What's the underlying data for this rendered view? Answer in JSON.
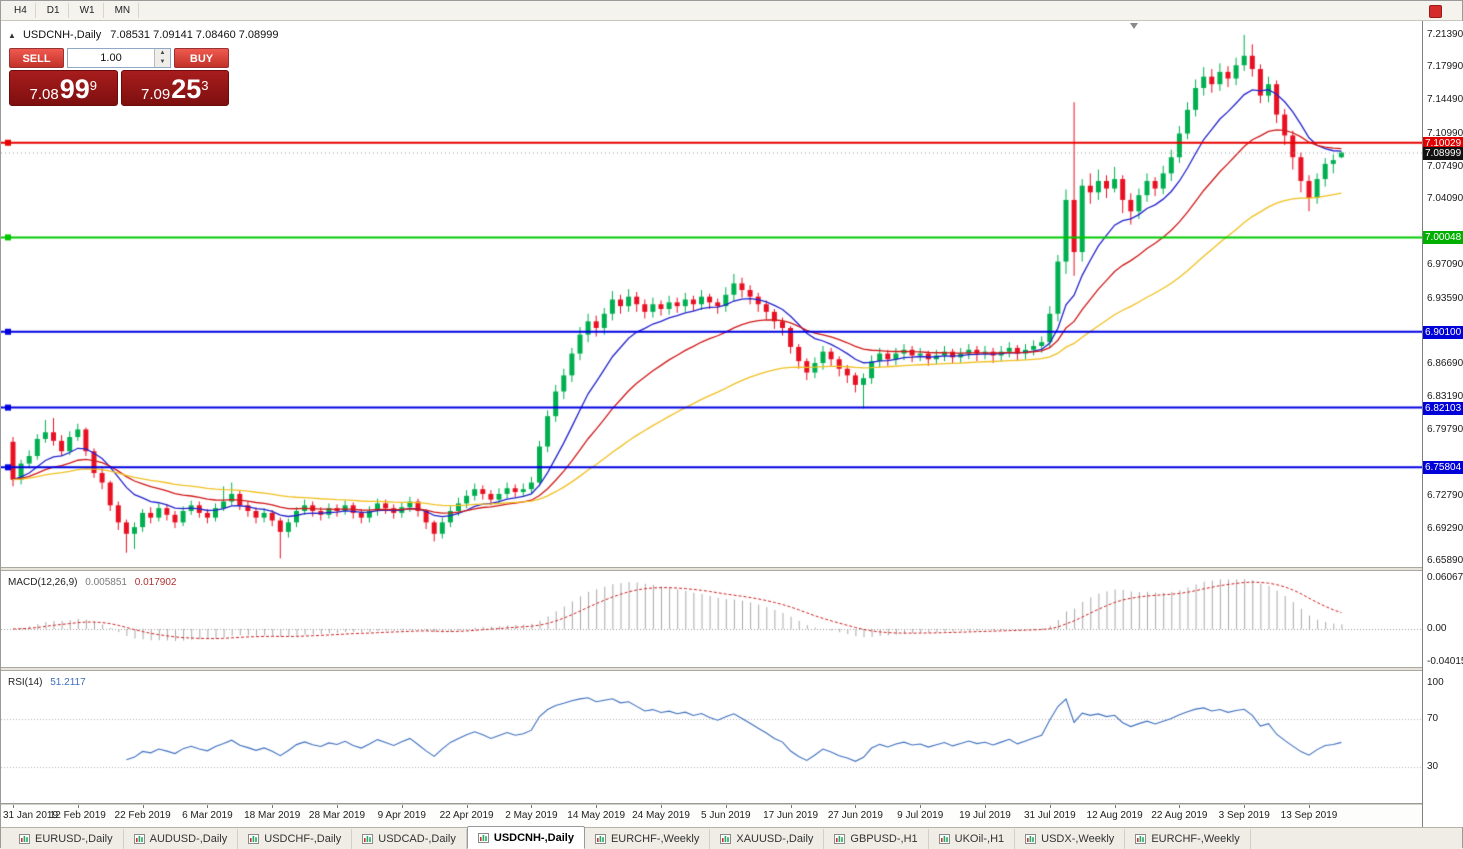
{
  "toolbar": {
    "timeframes": [
      "H4",
      "D1",
      "W1",
      "MN"
    ]
  },
  "icons": {
    "collapse_panel": "▲",
    "spinner_up": "▲",
    "spinner_down": "▼"
  },
  "chart_header": {
    "title": "USDCNH-,Daily",
    "ohlc": "7.08531 7.09141 7.08460 7.08999"
  },
  "trade_panel": {
    "sell": "SELL",
    "buy": "BUY",
    "volume": "1.00",
    "bid": {
      "big": "7.08",
      "pips": "99",
      "sup": "9"
    },
    "ask": {
      "big": "7.09",
      "pips": "25",
      "sup": "3"
    }
  },
  "price_axis": {
    "ticks": [
      "7.21390",
      "7.17990",
      "7.14490",
      "7.10990",
      "7.07490",
      "7.04090",
      "6.97090",
      "6.93590",
      "6.86690",
      "6.83190",
      "6.79790",
      "6.72790",
      "6.69290",
      "6.65890"
    ],
    "badges": [
      {
        "text": "7.10029",
        "color": "#E00000"
      },
      {
        "text": "7.08999",
        "color": "#111111"
      },
      {
        "text": "7.00048",
        "color": "#00AF00"
      },
      {
        "text": "6.90100",
        "color": "#0000D8"
      },
      {
        "text": "6.82103",
        "color": "#0000D8"
      },
      {
        "text": "6.75804",
        "color": "#0000D8"
      }
    ]
  },
  "indicator_macd": {
    "label": "MACD(12,26,9)",
    "main_value": "0.005851",
    "signal_value": "0.017902",
    "axis": [
      "0.060674",
      "0.00",
      "-0.040152"
    ]
  },
  "indicator_rsi": {
    "label": "RSI(14)",
    "value": "51.2117",
    "axis": [
      "100",
      "70",
      "30"
    ]
  },
  "tabs": {
    "active_index": 4,
    "items": [
      "EURUSD-,Daily",
      "AUDUSD-,Daily",
      "USDCHF-,Daily",
      "USDCAD-,Daily",
      "USDCNH-,Daily",
      "EURCHF-,Weekly",
      "XAUUSD-,Daily",
      "GBPUSD-,H1",
      "UKOil-,H1",
      "USDX-,Weekly",
      "EURCHF-,Weekly"
    ],
    "note": "USDCNH-,Daily is the active chart tab"
  },
  "chart_data": {
    "type": "candlestick",
    "symbol": "USDCNH-",
    "timeframe": "Daily",
    "current_bar": {
      "open": 7.08531,
      "high": 7.09141,
      "low": 7.0846,
      "close": 7.08999
    },
    "current_price": 7.08999,
    "y_range": [
      6.6589,
      7.2139
    ],
    "up_color": "#00B050",
    "down_color": "#E81123",
    "horizontal_lines": [
      {
        "price": 7.10029,
        "color": "#E80000"
      },
      {
        "price": 7.00048,
        "color": "#00C800"
      },
      {
        "price": 6.901,
        "color": "#0000E0"
      },
      {
        "price": 6.82103,
        "color": "#0000E0"
      },
      {
        "price": 6.75804,
        "color": "#0000E0"
      }
    ],
    "moving_averages": [
      {
        "period": 10,
        "color": "#2222CC"
      },
      {
        "period": 22,
        "color": "#D01818"
      },
      {
        "period": 50,
        "color": "#F0C020"
      }
    ],
    "indicators": {
      "macd": {
        "params": [
          12,
          26,
          9
        ],
        "main": 0.005851,
        "signal": 0.017902,
        "axis_values": [
          0.060674,
          0.0,
          -0.040152
        ],
        "histogram_color": "#A8A8A8",
        "signal_color": "#CC2222"
      },
      "rsi": {
        "period": 14,
        "value": 51.2117,
        "levels": [
          70,
          30
        ],
        "range": [
          0,
          100
        ],
        "line_color": "#3E6FBE"
      }
    },
    "x_labels": [
      "31 Jan 2019",
      "12 Feb 2019",
      "22 Feb 2019",
      "6 Mar 2019",
      "18 Mar 2019",
      "28 Mar 2019",
      "9 Apr 2019",
      "22 Apr 2019",
      "2 May 2019",
      "14 May 2019",
      "24 May 2019",
      "5 Jun 2019",
      "17 Jun 2019",
      "27 Jun 2019",
      "9 Jul 2019",
      "19 Jul 2019",
      "31 Jul 2019",
      "12 Aug 2019",
      "22 Aug 2019",
      "3 Sep 2019",
      "13 Sep 2019"
    ],
    "candles": [
      [
        6.785,
        6.79,
        6.738,
        6.745
      ],
      [
        6.745,
        6.766,
        6.74,
        6.762
      ],
      [
        6.762,
        6.776,
        6.757,
        6.77
      ],
      [
        6.77,
        6.793,
        6.766,
        6.788
      ],
      [
        6.788,
        6.808,
        6.784,
        6.795
      ],
      [
        6.795,
        6.81,
        6.781,
        6.786
      ],
      [
        6.786,
        6.792,
        6.77,
        6.775
      ],
      [
        6.775,
        6.796,
        6.771,
        6.79
      ],
      [
        6.79,
        6.804,
        6.786,
        6.798
      ],
      [
        6.798,
        6.8,
        6.77,
        6.775
      ],
      [
        6.775,
        6.778,
        6.747,
        6.752
      ],
      [
        6.752,
        6.757,
        6.735,
        6.742
      ],
      [
        6.742,
        6.744,
        6.712,
        6.718
      ],
      [
        6.718,
        6.722,
        6.692,
        6.7
      ],
      [
        6.7,
        6.703,
        6.668,
        6.688
      ],
      [
        6.688,
        6.7,
        6.672,
        6.695
      ],
      [
        6.695,
        6.714,
        6.69,
        6.71
      ],
      [
        6.71,
        6.716,
        6.699,
        6.705
      ],
      [
        6.705,
        6.72,
        6.701,
        6.715
      ],
      [
        6.715,
        6.719,
        6.702,
        6.708
      ],
      [
        6.708,
        6.712,
        6.694,
        6.7
      ],
      [
        6.7,
        6.717,
        6.696,
        6.712
      ],
      [
        6.712,
        6.723,
        6.708,
        6.718
      ],
      [
        6.718,
        6.722,
        6.705,
        6.71
      ],
      [
        6.71,
        6.714,
        6.699,
        6.705
      ],
      [
        6.705,
        6.72,
        6.701,
        6.715
      ],
      [
        6.715,
        6.738,
        6.712,
        6.722
      ],
      [
        6.722,
        6.742,
        6.718,
        6.73
      ],
      [
        6.73,
        6.733,
        6.713,
        6.718
      ],
      [
        6.718,
        6.722,
        6.706,
        6.712
      ],
      [
        6.712,
        6.716,
        6.699,
        6.705
      ],
      [
        6.705,
        6.715,
        6.7,
        6.71
      ],
      [
        6.71,
        6.713,
        6.696,
        6.702
      ],
      [
        6.702,
        6.705,
        6.662,
        6.69
      ],
      [
        6.69,
        6.704,
        6.684,
        6.7
      ],
      [
        6.7,
        6.716,
        6.695,
        6.712
      ],
      [
        6.712,
        6.724,
        6.708,
        6.718
      ],
      [
        6.718,
        6.722,
        6.706,
        6.712
      ],
      [
        6.712,
        6.716,
        6.702,
        6.708
      ],
      [
        6.708,
        6.72,
        6.704,
        6.715
      ],
      [
        6.715,
        6.719,
        6.706,
        6.712
      ],
      [
        6.712,
        6.723,
        6.708,
        6.718
      ],
      [
        6.718,
        6.721,
        6.704,
        6.71
      ],
      [
        6.71,
        6.714,
        6.699,
        6.705
      ],
      [
        6.705,
        6.717,
        6.7,
        6.712
      ],
      [
        6.712,
        6.725,
        6.707,
        6.72
      ],
      [
        6.72,
        6.724,
        6.709,
        6.715
      ],
      [
        6.715,
        6.719,
        6.704,
        6.71
      ],
      [
        6.71,
        6.721,
        6.705,
        6.716
      ],
      [
        6.716,
        6.727,
        6.711,
        6.722
      ],
      [
        6.722,
        6.725,
        6.706,
        6.712
      ],
      [
        6.712,
        6.714,
        6.693,
        6.7
      ],
      [
        6.7,
        6.702,
        6.68,
        6.688
      ],
      [
        6.688,
        6.705,
        6.683,
        6.7
      ],
      [
        6.7,
        6.717,
        6.695,
        6.712
      ],
      [
        6.712,
        6.726,
        6.707,
        6.72
      ],
      [
        6.72,
        6.734,
        6.715,
        6.728
      ],
      [
        6.728,
        6.741,
        6.723,
        6.735
      ],
      [
        6.735,
        6.739,
        6.724,
        6.73
      ],
      [
        6.73,
        6.734,
        6.718,
        6.724
      ],
      [
        6.724,
        6.736,
        6.719,
        6.73
      ],
      [
        6.73,
        6.742,
        6.725,
        6.736
      ],
      [
        6.736,
        6.74,
        6.726,
        6.732
      ],
      [
        6.732,
        6.741,
        6.727,
        6.735
      ],
      [
        6.735,
        6.748,
        6.73,
        6.742
      ],
      [
        6.742,
        6.786,
        6.738,
        6.78
      ],
      [
        6.78,
        6.818,
        6.774,
        6.812
      ],
      [
        6.812,
        6.845,
        6.806,
        6.838
      ],
      [
        6.838,
        6.862,
        6.83,
        6.855
      ],
      [
        6.855,
        6.884,
        6.848,
        6.878
      ],
      [
        6.878,
        6.906,
        6.871,
        6.898
      ],
      [
        6.898,
        6.92,
        6.89,
        6.912
      ],
      [
        6.912,
        6.918,
        6.896,
        6.905
      ],
      [
        6.905,
        6.926,
        6.898,
        6.92
      ],
      [
        6.92,
        6.944,
        6.913,
        6.935
      ],
      [
        6.935,
        6.94,
        6.92,
        6.928
      ],
      [
        6.928,
        6.946,
        6.922,
        6.938
      ],
      [
        6.938,
        6.943,
        6.922,
        6.93
      ],
      [
        6.93,
        6.935,
        6.915,
        6.922
      ],
      [
        6.922,
        6.937,
        6.916,
        6.93
      ],
      [
        6.93,
        6.934,
        6.918,
        6.925
      ],
      [
        6.925,
        6.939,
        6.919,
        6.932
      ],
      [
        6.932,
        6.937,
        6.921,
        6.928
      ],
      [
        6.928,
        6.942,
        6.922,
        6.935
      ],
      [
        6.935,
        6.939,
        6.923,
        6.93
      ],
      [
        6.93,
        6.945,
        6.924,
        6.938
      ],
      [
        6.938,
        6.941,
        6.925,
        6.932
      ],
      [
        6.932,
        6.936,
        6.92,
        6.928
      ],
      [
        6.928,
        6.948,
        6.922,
        6.94
      ],
      [
        6.94,
        6.962,
        6.933,
        6.952
      ],
      [
        6.952,
        6.958,
        6.937,
        6.945
      ],
      [
        6.945,
        6.95,
        6.93,
        6.938
      ],
      [
        6.938,
        6.942,
        6.922,
        6.93
      ],
      [
        6.93,
        6.934,
        6.914,
        6.922
      ],
      [
        6.922,
        6.925,
        6.904,
        6.912
      ],
      [
        6.912,
        6.916,
        6.897,
        6.905
      ],
      [
        6.905,
        6.907,
        6.878,
        6.885
      ],
      [
        6.885,
        6.888,
        6.862,
        6.87
      ],
      [
        6.87,
        6.873,
        6.85,
        6.858
      ],
      [
        6.858,
        6.874,
        6.852,
        6.868
      ],
      [
        6.868,
        6.886,
        6.861,
        6.88
      ],
      [
        6.88,
        6.884,
        6.864,
        6.872
      ],
      [
        6.872,
        6.875,
        6.854,
        6.862
      ],
      [
        6.862,
        6.866,
        6.847,
        6.855
      ],
      [
        6.855,
        6.858,
        6.837,
        6.845
      ],
      [
        6.845,
        6.857,
        6.82,
        6.852
      ],
      [
        6.852,
        6.876,
        6.846,
        6.87
      ],
      [
        6.87,
        6.884,
        6.863,
        6.878
      ],
      [
        6.878,
        6.882,
        6.865,
        6.872
      ],
      [
        6.872,
        6.884,
        6.866,
        6.878
      ],
      [
        6.878,
        6.888,
        6.871,
        6.882
      ],
      [
        6.882,
        6.886,
        6.869,
        6.876
      ],
      [
        6.876,
        6.884,
        6.87,
        6.878
      ],
      [
        6.878,
        6.881,
        6.865,
        6.872
      ],
      [
        6.872,
        6.882,
        6.867,
        6.876
      ],
      [
        6.876,
        6.886,
        6.87,
        6.88
      ],
      [
        6.88,
        6.883,
        6.867,
        6.874
      ],
      [
        6.874,
        6.884,
        6.868,
        6.878
      ],
      [
        6.878,
        6.888,
        6.872,
        6.882
      ],
      [
        6.882,
        6.886,
        6.87,
        6.878
      ],
      [
        6.878,
        6.886,
        6.872,
        6.88
      ],
      [
        6.88,
        6.884,
        6.868,
        6.876
      ],
      [
        6.876,
        6.886,
        6.87,
        6.88
      ],
      [
        6.88,
        6.89,
        6.874,
        6.884
      ],
      [
        6.884,
        6.887,
        6.87,
        6.878
      ],
      [
        6.878,
        6.888,
        6.872,
        6.882
      ],
      [
        6.882,
        6.892,
        6.876,
        6.886
      ],
      [
        6.886,
        6.896,
        6.879,
        6.89
      ],
      [
        6.89,
        6.928,
        6.884,
        6.92
      ],
      [
        6.92,
        6.982,
        6.912,
        6.975
      ],
      [
        6.975,
        7.051,
        6.962,
        7.04
      ],
      [
        7.04,
        7.143,
        6.96,
        6.985
      ],
      [
        6.985,
        7.062,
        6.975,
        7.055
      ],
      [
        7.055,
        7.068,
        7.036,
        7.048
      ],
      [
        7.048,
        7.072,
        7.04,
        7.06
      ],
      [
        7.06,
        7.066,
        7.042,
        7.052
      ],
      [
        7.052,
        7.075,
        7.048,
        7.062
      ],
      [
        7.062,
        7.066,
        7.026,
        7.04
      ],
      [
        7.04,
        7.047,
        7.014,
        7.028
      ],
      [
        7.028,
        7.052,
        7.02,
        7.045
      ],
      [
        7.045,
        7.068,
        7.038,
        7.06
      ],
      [
        7.06,
        7.064,
        7.044,
        7.052
      ],
      [
        7.052,
        7.076,
        7.046,
        7.068
      ],
      [
        7.068,
        7.093,
        7.06,
        7.085
      ],
      [
        7.085,
        7.118,
        7.079,
        7.11
      ],
      [
        7.11,
        7.143,
        7.104,
        7.135
      ],
      [
        7.135,
        7.167,
        7.128,
        7.158
      ],
      [
        7.158,
        7.18,
        7.15,
        7.17
      ],
      [
        7.17,
        7.178,
        7.153,
        7.162
      ],
      [
        7.162,
        7.184,
        7.155,
        7.175
      ],
      [
        7.175,
        7.181,
        7.159,
        7.168
      ],
      [
        7.168,
        7.19,
        7.161,
        7.182
      ],
      [
        7.182,
        7.214,
        7.176,
        7.192
      ],
      [
        7.192,
        7.204,
        7.17,
        7.178
      ],
      [
        7.178,
        7.183,
        7.142,
        7.15
      ],
      [
        7.15,
        7.17,
        7.143,
        7.162
      ],
      [
        7.162,
        7.166,
        7.121,
        7.13
      ],
      [
        7.13,
        7.136,
        7.098,
        7.108
      ],
      [
        7.108,
        7.113,
        7.072,
        7.085
      ],
      [
        7.085,
        7.09,
        7.048,
        7.06
      ],
      [
        7.06,
        7.066,
        7.028,
        7.042
      ],
      [
        7.042,
        7.068,
        7.036,
        7.062
      ],
      [
        7.062,
        7.084,
        7.054,
        7.078
      ],
      [
        7.078,
        7.088,
        7.068,
        7.082
      ],
      [
        7.085,
        7.091,
        7.084,
        7.09
      ]
    ]
  }
}
